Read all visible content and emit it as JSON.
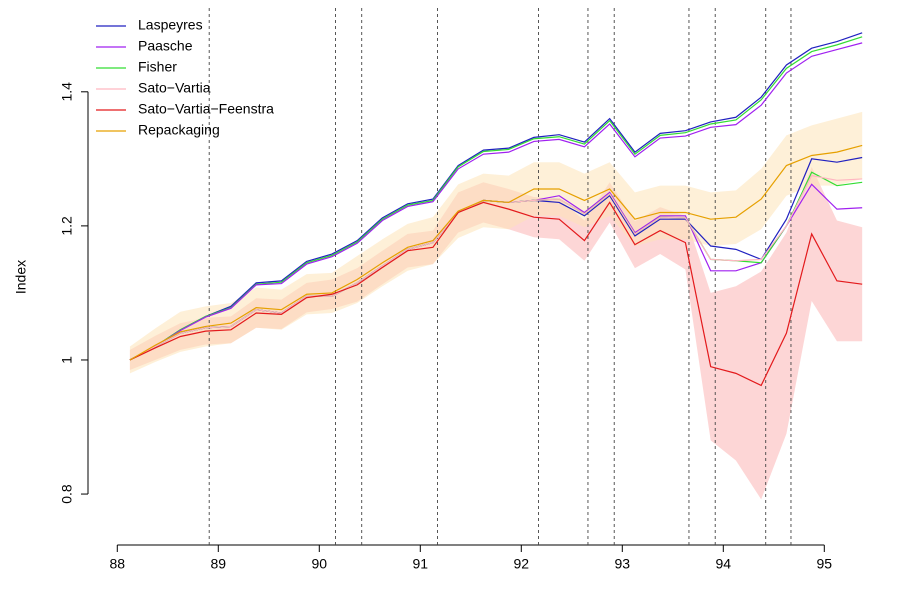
{
  "chart_data": {
    "type": "line",
    "y_label": "Index",
    "x": [
      88.125,
      88.375,
      88.625,
      88.875,
      89.125,
      89.375,
      89.625,
      89.875,
      90.125,
      90.375,
      90.625,
      90.875,
      91.125,
      91.375,
      91.625,
      91.875,
      92.125,
      92.375,
      92.625,
      92.875,
      93.125,
      93.375,
      93.625,
      93.875,
      94.125,
      94.375,
      94.625,
      94.875,
      95.125,
      95.375
    ],
    "xlim": [
      87.71,
      95.7
    ],
    "xticks": [
      88,
      89,
      90,
      91,
      92,
      93,
      94,
      95
    ],
    "ylim": [
      0.724,
      1.525
    ],
    "yticks": [
      0.8,
      1.0,
      1.2,
      1.4
    ],
    "vlines": [
      88.91,
      90.16,
      90.42,
      91.17,
      92.17,
      92.66,
      92.92,
      93.66,
      93.92,
      94.42,
      94.67
    ],
    "legend": "top-left",
    "series": [
      {
        "color": "#2020c0",
        "values": [
          1.0,
          1.02,
          1.045,
          1.065,
          1.08,
          1.115,
          1.118,
          1.147,
          1.158,
          1.178,
          1.212,
          1.233,
          1.24,
          1.29,
          1.313,
          1.316,
          1.332,
          1.336,
          1.325,
          1.36,
          1.31,
          1.338,
          1.342,
          1.355,
          1.362,
          1.392,
          1.44,
          1.465,
          1.475,
          1.488
        ]
      },
      {
        "color": "#33dd33",
        "values": [
          1.0,
          1.02,
          1.045,
          1.065,
          1.078,
          1.113,
          1.116,
          1.145,
          1.156,
          1.176,
          1.21,
          1.231,
          1.238,
          1.288,
          1.311,
          1.314,
          1.33,
          1.333,
          1.322,
          1.357,
          1.307,
          1.335,
          1.339,
          1.352,
          1.358,
          1.388,
          1.435,
          1.46,
          1.47,
          1.482
        ]
      },
      {
        "color": "#a020f0",
        "values": [
          1.0,
          1.02,
          1.044,
          1.064,
          1.077,
          1.112,
          1.114,
          1.143,
          1.154,
          1.174,
          1.208,
          1.229,
          1.236,
          1.285,
          1.307,
          1.31,
          1.326,
          1.329,
          1.318,
          1.352,
          1.303,
          1.331,
          1.334,
          1.347,
          1.351,
          1.38,
          1.428,
          1.453,
          1.463,
          1.473
        ]
      },
      {
        "name": "Laspeyres",
        "color": "#2020c0",
        "values": [
          1.0,
          1.02,
          1.04,
          1.048,
          1.05,
          1.075,
          1.07,
          1.095,
          1.095,
          1.115,
          1.14,
          1.165,
          1.175,
          1.22,
          1.238,
          1.235,
          1.238,
          1.235,
          1.215,
          1.245,
          1.185,
          1.21,
          1.21,
          1.17,
          1.165,
          1.15,
          1.21,
          1.3,
          1.295,
          1.302
        ]
      },
      {
        "name": "Paasche",
        "color": "#a020f0",
        "values": [
          1.0,
          1.02,
          1.04,
          1.048,
          1.05,
          1.075,
          1.07,
          1.095,
          1.095,
          1.115,
          1.14,
          1.165,
          1.175,
          1.22,
          1.238,
          1.235,
          1.238,
          1.245,
          1.22,
          1.25,
          1.19,
          1.215,
          1.215,
          1.133,
          1.133,
          1.145,
          1.2,
          1.262,
          1.225,
          1.227
        ]
      },
      {
        "name": "Fisher",
        "color": "#33dd33",
        "values": [
          1.0,
          1.02,
          1.04,
          1.048,
          1.05,
          1.075,
          1.07,
          1.095,
          1.095,
          1.115,
          1.14,
          1.165,
          1.175,
          1.22,
          1.238,
          1.235,
          1.238,
          1.24,
          1.218,
          1.248,
          1.188,
          1.213,
          1.212,
          1.15,
          1.148,
          1.145,
          1.2,
          1.28,
          1.26,
          1.265
        ]
      },
      {
        "name": "Sato−Vartia",
        "color": "#ffb6c1",
        "values": [
          1.0,
          1.02,
          1.04,
          1.048,
          1.05,
          1.075,
          1.07,
          1.095,
          1.095,
          1.115,
          1.14,
          1.165,
          1.175,
          1.22,
          1.238,
          1.235,
          1.238,
          1.24,
          1.218,
          1.248,
          1.188,
          1.213,
          1.212,
          1.15,
          1.148,
          1.15,
          1.2,
          1.275,
          1.268,
          1.27
        ]
      },
      {
        "name": "Sato−Vartia−Feenstra",
        "color": "#e31a1c",
        "band_color": "#fbb4b4",
        "values": [
          1.0,
          1.018,
          1.035,
          1.043,
          1.045,
          1.07,
          1.068,
          1.093,
          1.098,
          1.112,
          1.138,
          1.163,
          1.168,
          1.22,
          1.235,
          1.225,
          1.213,
          1.21,
          1.178,
          1.235,
          1.172,
          1.193,
          1.175,
          0.99,
          0.98,
          0.962,
          1.04,
          1.188,
          1.118,
          1.113
        ],
        "lower": [
          0.985,
          1.0,
          1.015,
          1.023,
          1.025,
          1.048,
          1.046,
          1.071,
          1.076,
          1.087,
          1.113,
          1.138,
          1.143,
          1.19,
          1.205,
          1.195,
          1.183,
          1.18,
          1.148,
          1.205,
          1.137,
          1.158,
          1.135,
          0.88,
          0.85,
          0.792,
          0.89,
          1.088,
          1.028,
          1.028
        ],
        "upper": [
          1.015,
          1.036,
          1.055,
          1.063,
          1.065,
          1.092,
          1.09,
          1.115,
          1.12,
          1.137,
          1.163,
          1.188,
          1.193,
          1.25,
          1.265,
          1.255,
          1.243,
          1.24,
          1.208,
          1.265,
          1.207,
          1.228,
          1.215,
          1.1,
          1.11,
          1.132,
          1.19,
          1.288,
          1.208,
          1.198
        ]
      },
      {
        "name": "Repackaging",
        "color": "#e6a000",
        "band_color": "#fde3b8",
        "values": [
          1.0,
          1.022,
          1.042,
          1.05,
          1.055,
          1.078,
          1.075,
          1.098,
          1.1,
          1.12,
          1.145,
          1.168,
          1.178,
          1.222,
          1.238,
          1.235,
          1.255,
          1.255,
          1.238,
          1.255,
          1.21,
          1.22,
          1.22,
          1.21,
          1.213,
          1.24,
          1.29,
          1.305,
          1.31,
          1.32
        ],
        "lower": [
          0.98,
          0.997,
          1.012,
          1.02,
          1.025,
          1.048,
          1.045,
          1.068,
          1.07,
          1.085,
          1.11,
          1.133,
          1.143,
          1.182,
          1.198,
          1.195,
          1.215,
          1.215,
          1.198,
          1.215,
          1.17,
          1.18,
          1.18,
          1.17,
          1.173,
          1.195,
          1.245,
          1.26,
          1.26,
          1.27
        ],
        "upper": [
          1.02,
          1.047,
          1.072,
          1.08,
          1.085,
          1.108,
          1.105,
          1.128,
          1.13,
          1.155,
          1.18,
          1.203,
          1.213,
          1.262,
          1.278,
          1.275,
          1.295,
          1.295,
          1.278,
          1.295,
          1.25,
          1.26,
          1.26,
          1.25,
          1.253,
          1.285,
          1.335,
          1.35,
          1.36,
          1.37
        ]
      }
    ]
  }
}
